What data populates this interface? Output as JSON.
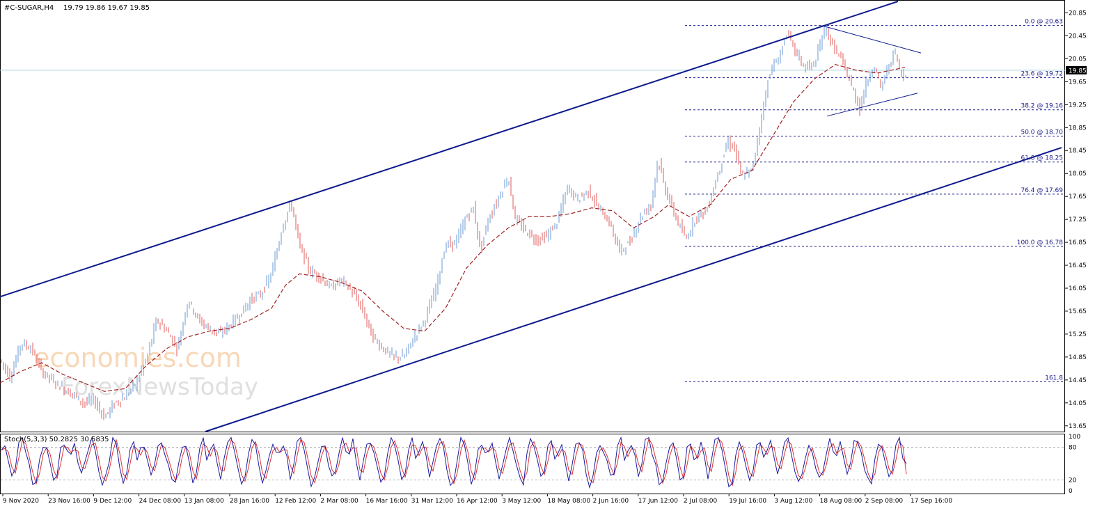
{
  "header": {
    "symbol": "#C-SUGAR,H4",
    "ohlc": "19.79 19.86 19.67 19.85"
  },
  "current_price": "19.85",
  "watermark": {
    "line1": "economies.com",
    "line2": "ForexNewsToday"
  },
  "colors": {
    "bull": "#6a9ad3",
    "bear": "#e05a5a",
    "ma": "#a02020",
    "channel": "#0d1a8c",
    "fib": "#1a1a8c",
    "stoch_main": "#1a1aa0",
    "stoch_signal": "#e03030"
  },
  "stochastic": {
    "label": "Stoch(5,3,3) 50.2825 30.5835",
    "ticks": [
      "100",
      "80",
      "20",
      "0"
    ],
    "main_value": 50.2825,
    "signal_value": 30.5835
  },
  "chart_data": {
    "type": "candlestick",
    "y_ticks": [
      "20.85",
      "20.45",
      "20.05",
      "19.65",
      "19.25",
      "18.85",
      "18.45",
      "18.05",
      "17.65",
      "17.25",
      "16.85",
      "16.45",
      "16.05",
      "15.65",
      "15.25",
      "14.85",
      "14.45",
      "14.05",
      "13.65"
    ],
    "x_ticks": [
      "9 Nov 2020",
      "23 Nov 16:00",
      "9 Dec 12:00",
      "24 Dec 08:00",
      "13 Jan 08:00",
      "28 Jan 16:00",
      "12 Feb 12:00",
      "2 Mar 08:00",
      "16 Mar 16:00",
      "31 Mar 12:00",
      "16 Apr 12:00",
      "3 May 12:00",
      "18 May 08:00",
      "2 Jun 16:00",
      "17 Jun 12:00",
      "2 Jul 08:00",
      "19 Jul 16:00",
      "3 Aug 12:00",
      "18 Aug 08:00",
      "2 Sep 08:00",
      "17 Sep 16:00"
    ],
    "ylim": [
      13.55,
      21.05
    ],
    "fibonacci": [
      {
        "label": "0.0 @ 20.63",
        "value": 20.63
      },
      {
        "label": "23.6 @ 19.72",
        "value": 19.72
      },
      {
        "label": "38.2 @ 19.16",
        "value": 19.16
      },
      {
        "label": "50.0 @ 18.70",
        "value": 18.7
      },
      {
        "label": "61.8 @ 18.25",
        "value": 18.25
      },
      {
        "label": "76.4 @ 17.69",
        "value": 17.69
      },
      {
        "label": "100.0 @ 16.78",
        "value": 16.78
      },
      {
        "label": "161.8",
        "value": 14.42
      }
    ],
    "price_path": [
      [
        0,
        14.8
      ],
      [
        15,
        14.5
      ],
      [
        30,
        15.1
      ],
      [
        45,
        15.0
      ],
      [
        60,
        14.6
      ],
      [
        75,
        14.45
      ],
      [
        90,
        14.3
      ],
      [
        105,
        14.2
      ],
      [
        120,
        14.05
      ],
      [
        135,
        14.1
      ],
      [
        150,
        13.8
      ],
      [
        165,
        14.05
      ],
      [
        180,
        14.15
      ],
      [
        195,
        14.4
      ],
      [
        210,
        14.8
      ],
      [
        225,
        15.5
      ],
      [
        240,
        15.3
      ],
      [
        255,
        15.0
      ],
      [
        270,
        15.85
      ],
      [
        285,
        15.5
      ],
      [
        300,
        15.35
      ],
      [
        315,
        15.25
      ],
      [
        330,
        15.4
      ],
      [
        345,
        15.6
      ],
      [
        360,
        15.85
      ],
      [
        375,
        15.95
      ],
      [
        390,
        16.3
      ],
      [
        405,
        17.1
      ],
      [
        418,
        17.55
      ],
      [
        430,
        16.8
      ],
      [
        445,
        16.35
      ],
      [
        460,
        16.25
      ],
      [
        475,
        16.05
      ],
      [
        490,
        16.2
      ],
      [
        505,
        16.0
      ],
      [
        520,
        15.7
      ],
      [
        535,
        15.2
      ],
      [
        550,
        15.0
      ],
      [
        565,
        14.85
      ],
      [
        580,
        14.85
      ],
      [
        595,
        15.2
      ],
      [
        610,
        15.5
      ],
      [
        625,
        16.0
      ],
      [
        640,
        16.8
      ],
      [
        655,
        16.85
      ],
      [
        670,
        17.3
      ],
      [
        680,
        17.45
      ],
      [
        690,
        16.7
      ],
      [
        700,
        17.2
      ],
      [
        715,
        17.6
      ],
      [
        730,
        18.0
      ],
      [
        740,
        17.25
      ],
      [
        755,
        17.05
      ],
      [
        770,
        16.9
      ],
      [
        785,
        16.95
      ],
      [
        800,
        17.2
      ],
      [
        815,
        17.8
      ],
      [
        830,
        17.6
      ],
      [
        845,
        17.75
      ],
      [
        860,
        17.45
      ],
      [
        875,
        17.2
      ],
      [
        890,
        16.7
      ],
      [
        905,
        16.85
      ],
      [
        920,
        17.3
      ],
      [
        935,
        17.5
      ],
      [
        945,
        18.3
      ],
      [
        955,
        17.8
      ],
      [
        970,
        17.3
      ],
      [
        985,
        16.9
      ],
      [
        1000,
        17.3
      ],
      [
        1015,
        17.4
      ],
      [
        1030,
        18.0
      ],
      [
        1045,
        18.6
      ],
      [
        1055,
        18.5
      ],
      [
        1065,
        18.0
      ],
      [
        1080,
        18.1
      ],
      [
        1092,
        18.9
      ],
      [
        1105,
        19.8
      ],
      [
        1120,
        20.1
      ],
      [
        1130,
        20.5
      ],
      [
        1142,
        20.2
      ],
      [
        1155,
        19.9
      ],
      [
        1170,
        19.95
      ],
      [
        1185,
        20.6
      ],
      [
        1195,
        20.3
      ],
      [
        1210,
        20.0
      ],
      [
        1225,
        19.5
      ],
      [
        1235,
        19.2
      ],
      [
        1245,
        19.65
      ],
      [
        1255,
        19.95
      ],
      [
        1265,
        19.55
      ],
      [
        1275,
        19.85
      ],
      [
        1285,
        20.2
      ],
      [
        1295,
        19.75
      ],
      [
        1303,
        19.85
      ]
    ],
    "ma_path": [
      [
        0,
        14.4
      ],
      [
        30,
        14.6
      ],
      [
        60,
        14.75
      ],
      [
        90,
        14.55
      ],
      [
        120,
        14.4
      ],
      [
        150,
        14.25
      ],
      [
        180,
        14.3
      ],
      [
        210,
        14.7
      ],
      [
        240,
        15.0
      ],
      [
        270,
        15.2
      ],
      [
        300,
        15.3
      ],
      [
        330,
        15.35
      ],
      [
        360,
        15.5
      ],
      [
        390,
        15.7
      ],
      [
        410,
        16.1
      ],
      [
        430,
        16.3
      ],
      [
        460,
        16.25
      ],
      [
        490,
        16.15
      ],
      [
        520,
        16.0
      ],
      [
        550,
        15.65
      ],
      [
        580,
        15.35
      ],
      [
        610,
        15.3
      ],
      [
        640,
        15.7
      ],
      [
        670,
        16.4
      ],
      [
        700,
        16.8
      ],
      [
        730,
        17.1
      ],
      [
        760,
        17.3
      ],
      [
        790,
        17.3
      ],
      [
        820,
        17.35
      ],
      [
        850,
        17.45
      ],
      [
        880,
        17.4
      ],
      [
        910,
        17.1
      ],
      [
        940,
        17.3
      ],
      [
        960,
        17.5
      ],
      [
        990,
        17.3
      ],
      [
        1020,
        17.5
      ],
      [
        1050,
        17.95
      ],
      [
        1080,
        18.1
      ],
      [
        1110,
        18.7
      ],
      [
        1140,
        19.3
      ],
      [
        1170,
        19.7
      ],
      [
        1200,
        19.95
      ],
      [
        1230,
        19.85
      ],
      [
        1260,
        19.8
      ],
      [
        1300,
        19.9
      ]
    ],
    "stoch_pattern": [
      70,
      90,
      60,
      25,
      50,
      85,
      95,
      75,
      40,
      15,
      20,
      60,
      90,
      80,
      50,
      20,
      35,
      75,
      92,
      65
    ],
    "annotations": {
      "channel_upper": [
        [
          0,
          15.9
        ],
        [
          1290,
          21.05
        ]
      ],
      "channel_lower": [
        [
          295,
          13.55
        ],
        [
          1525,
          18.5
        ]
      ],
      "triangle_upper": [
        [
          1180,
          20.63
        ],
        [
          1323,
          20.15
        ]
      ],
      "triangle_lower": [
        [
          1188,
          19.05
        ],
        [
          1318,
          19.45
        ]
      ]
    }
  }
}
